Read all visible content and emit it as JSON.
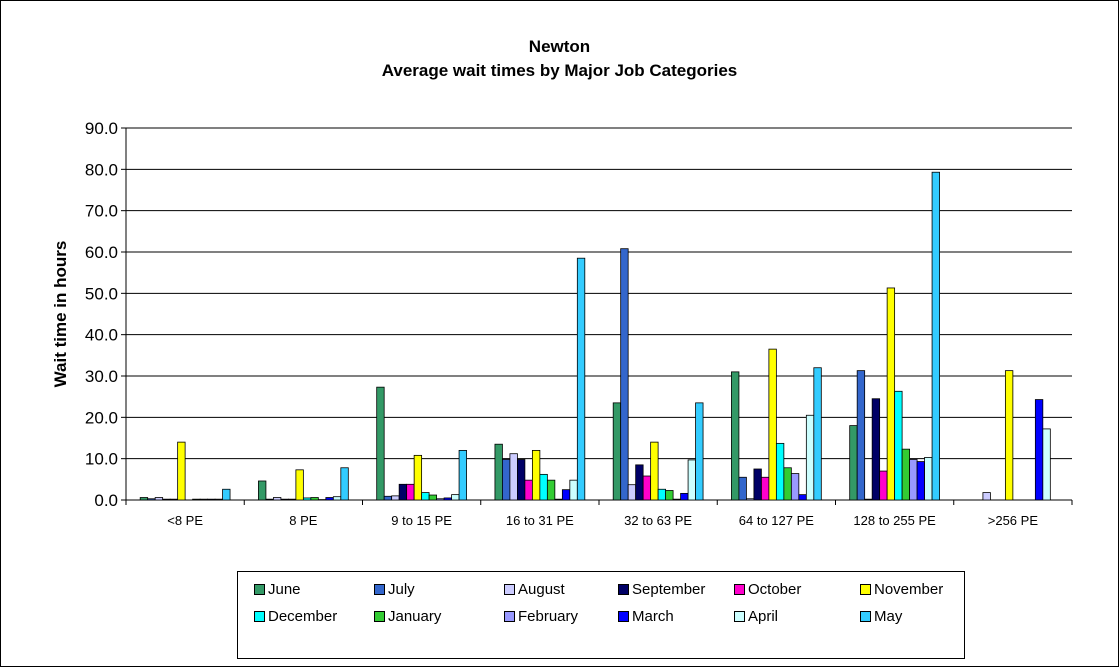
{
  "chart_data": {
    "type": "bar",
    "title_line1": "Newton",
    "title_line2": "Average wait times by Major Job Categories",
    "ylabel": "Wait time in hours",
    "xlabel": "",
    "ylim": [
      0,
      90
    ],
    "yticks": [
      "0.0",
      "10.0",
      "20.0",
      "30.0",
      "40.0",
      "50.0",
      "60.0",
      "70.0",
      "80.0",
      "90.0"
    ],
    "grid": true,
    "legend_position": "bottom",
    "categories": [
      "<8 PE",
      "8 PE",
      "9 to 15 PE",
      "16 to 31 PE",
      "32 to 63 PE",
      "64 to 127 PE",
      "128 to 255 PE",
      ">256 PE"
    ],
    "series": [
      {
        "name": "June",
        "color": "#339966",
        "values": [
          0.6,
          4.6,
          27.3,
          13.5,
          23.5,
          31.0,
          18.0,
          0
        ]
      },
      {
        "name": "July",
        "color": "#3366CC",
        "values": [
          0.3,
          0.2,
          0.9,
          9.8,
          60.8,
          5.5,
          31.3,
          0
        ]
      },
      {
        "name": "August",
        "color": "#CCCCFF",
        "values": [
          0.6,
          0.6,
          1.0,
          11.2,
          3.7,
          0.3,
          0.2,
          1.8
        ]
      },
      {
        "name": "September",
        "color": "#000066",
        "values": [
          0.2,
          0.2,
          3.8,
          9.8,
          8.5,
          7.5,
          24.5,
          0
        ]
      },
      {
        "name": "October",
        "color": "#FF00CC",
        "values": [
          0.2,
          0.2,
          3.8,
          4.8,
          5.8,
          5.5,
          7.0,
          0
        ]
      },
      {
        "name": "November",
        "color": "#FFFF00",
        "values": [
          14.0,
          7.3,
          10.8,
          12.0,
          14.0,
          36.5,
          51.3,
          31.3
        ]
      },
      {
        "name": "December",
        "color": "#00FFFF",
        "values": [
          0,
          0.5,
          1.8,
          6.2,
          2.6,
          13.7,
          26.3,
          0
        ]
      },
      {
        "name": "January",
        "color": "#33CC33",
        "values": [
          0.2,
          0.6,
          1.2,
          4.8,
          2.3,
          7.8,
          12.3,
          0
        ]
      },
      {
        "name": "February",
        "color": "#9999FF",
        "values": [
          0.2,
          0.1,
          0.3,
          0.2,
          0.2,
          6.4,
          9.8,
          0
        ]
      },
      {
        "name": "March",
        "color": "#0000FF",
        "values": [
          0.2,
          0.6,
          0.5,
          2.5,
          1.6,
          1.3,
          9.3,
          24.3
        ]
      },
      {
        "name": "April",
        "color": "#CCFFFF",
        "values": [
          0.2,
          0.8,
          1.3,
          4.8,
          9.7,
          20.5,
          10.3,
          17.2
        ]
      },
      {
        "name": "May",
        "color": "#33CCFF",
        "values": [
          2.6,
          7.8,
          12.0,
          58.5,
          23.5,
          32.0,
          79.3,
          0
        ]
      }
    ]
  }
}
